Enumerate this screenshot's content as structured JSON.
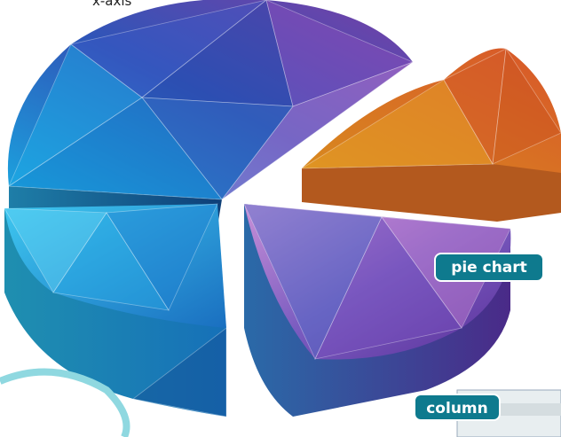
{
  "labels": {
    "x_axis": "x-axis",
    "pie_chart": "pie chart",
    "column": "column"
  }
}
